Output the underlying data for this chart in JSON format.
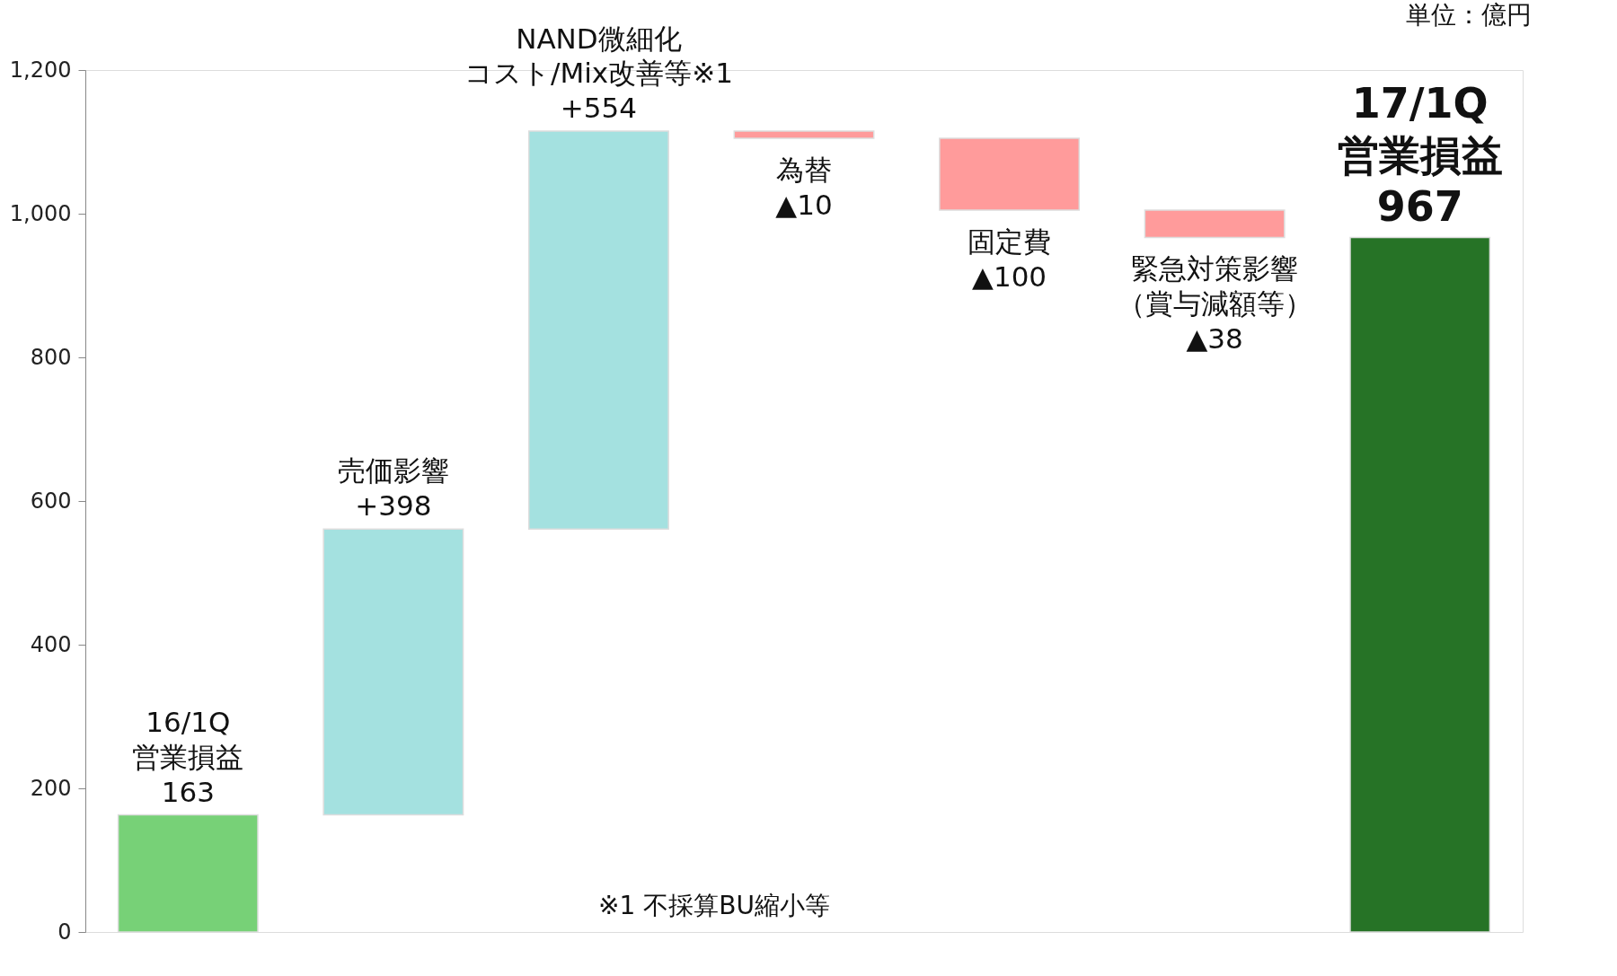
{
  "chart_data": {
    "type": "bar",
    "categories": [
      "16/1Q\n営業損益",
      "売価影響",
      "NAND微細化コスト/Mix改善等※1",
      "為替",
      "固定費",
      "緊急対策影響（賞与減額等）",
      "17/1Q\n営業損益"
    ],
    "values": [
      163,
      398,
      554,
      -10,
      -100,
      -38,
      967
    ],
    "base": [
      0,
      163,
      561,
      1115,
      1105,
      1005,
      0
    ],
    "colors": [
      "#77d177",
      "#a4e1e0",
      "#a4e1e0",
      "#ff9b9b",
      "#ff9b9b",
      "#ff9b9b",
      "#267326"
    ],
    "value_labels": [
      "163",
      "+398",
      "+554",
      "▲10",
      "▲100",
      "▲38",
      "967"
    ],
    "ylim": [
      0,
      1200
    ],
    "yticks": [
      0,
      200,
      400,
      600,
      800,
      {
        "value": 1000,
        "label": "1,000"
      },
      {
        "value": 1200,
        "label": "1,200"
      }
    ],
    "grid": false,
    "tick_labels": "y",
    "annotations": [
      "単位：億円",
      "※1 不採算BU縮小等"
    ]
  }
}
